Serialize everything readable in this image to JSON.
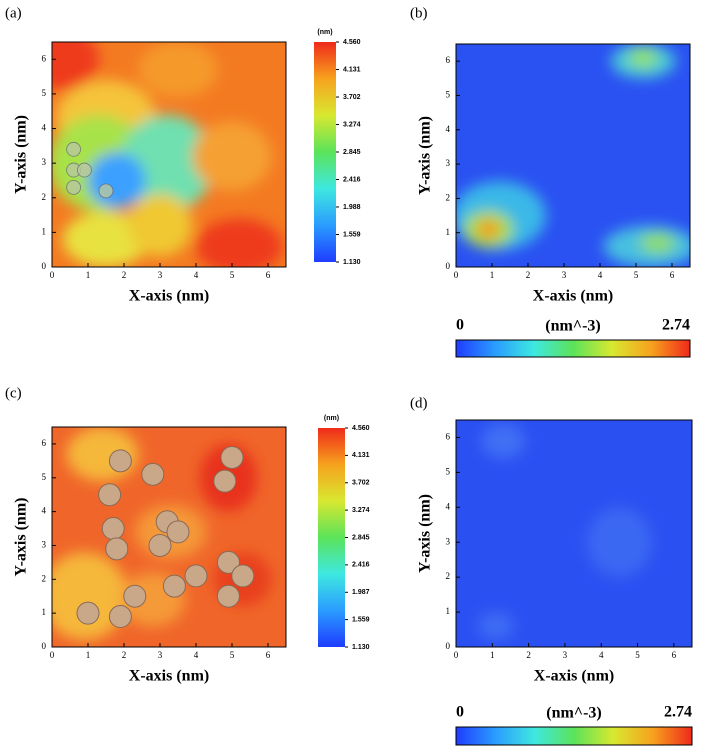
{
  "chart_data": [
    {
      "type": "heatmap",
      "panel_label": "(a)",
      "xlabel": "X-axis (nm)",
      "ylabel": "Y-axis (nm)",
      "xlim": [
        0,
        6.5
      ],
      "xticks": [
        0,
        1,
        2,
        3,
        4,
        5,
        6
      ],
      "ylim": [
        0,
        6.5
      ],
      "yticks": [
        0,
        1,
        2,
        3,
        4,
        5,
        6
      ],
      "colormap": [
        "#1f3cff",
        "#2a9cff",
        "#3ee8e0",
        "#5be35a",
        "#d8e830",
        "#f7a21e",
        "#ef2a1a"
      ],
      "colorbar": {
        "orientation": "vertical",
        "title": "(nm)",
        "lim": [
          1.13,
          4.56
        ],
        "ticks": [
          {
            "value": 1.13,
            "label": "1.130"
          },
          {
            "value": 1.559,
            "label": "1.559"
          },
          {
            "value": 1.988,
            "label": "1.988"
          },
          {
            "value": 2.416,
            "label": "2.416"
          },
          {
            "value": 2.845,
            "label": "2.845"
          },
          {
            "value": 3.274,
            "label": "3.274"
          },
          {
            "value": 3.702,
            "label": "3.702"
          },
          {
            "value": 4.131,
            "label": "4.131"
          },
          {
            "value": 4.56,
            "label": "4.560"
          }
        ]
      }
    },
    {
      "type": "heatmap",
      "panel_label": "(b)",
      "xlabel": "X-axis (nm)",
      "ylabel": "Y-axis (nm)",
      "xlim": [
        0,
        6.5
      ],
      "xticks": [
        0,
        1,
        2,
        3,
        4,
        5,
        6
      ],
      "ylim": [
        0,
        6.5
      ],
      "yticks": [
        0,
        1,
        2,
        3,
        4,
        5,
        6
      ],
      "colormap": [
        "#1f3cff",
        "#2a9cff",
        "#3ee8e0",
        "#5be35a",
        "#d8e830",
        "#f7a21e",
        "#ef2a1a"
      ],
      "colorbar": {
        "orientation": "horizontal",
        "title": "(nm^-3)",
        "lim": [
          0,
          2.74
        ],
        "ticks": [
          0,
          2.74
        ]
      }
    },
    {
      "type": "heatmap",
      "panel_label": "(c)",
      "xlabel": "X-axis (nm)",
      "ylabel": "Y-axis (nm)",
      "xlim": [
        0,
        6.5
      ],
      "xticks": [
        0,
        1,
        2,
        3,
        4,
        5,
        6
      ],
      "ylim": [
        0,
        6.5
      ],
      "yticks": [
        0,
        1,
        2,
        3,
        4,
        5,
        6
      ],
      "colormap": [
        "#1f3cff",
        "#2a9cff",
        "#3ee8e0",
        "#5be35a",
        "#d8e830",
        "#f7a21e",
        "#ef2a1a"
      ],
      "colorbar": {
        "orientation": "vertical",
        "title": "(nm)",
        "lim": [
          1.13,
          4.56
        ],
        "ticks": [
          {
            "value": 1.13,
            "label": "1.130"
          },
          {
            "value": 1.559,
            "label": "1.559"
          },
          {
            "value": 1.987,
            "label": "1.987"
          },
          {
            "value": 2.416,
            "label": "2.416"
          },
          {
            "value": 2.845,
            "label": "2.845"
          },
          {
            "value": 3.274,
            "label": "3.274"
          },
          {
            "value": 3.702,
            "label": "3.702"
          },
          {
            "value": 4.131,
            "label": "4.131"
          },
          {
            "value": 4.56,
            "label": "4.560"
          }
        ]
      }
    },
    {
      "type": "heatmap",
      "panel_label": "(d)",
      "xlabel": "X-axis (nm)",
      "ylabel": "Y-axis (nm)",
      "xlim": [
        0,
        6.5
      ],
      "xticks": [
        0,
        1,
        2,
        3,
        4,
        5,
        6
      ],
      "ylim": [
        0,
        6.5
      ],
      "yticks": [
        0,
        1,
        2,
        3,
        4,
        5,
        6
      ],
      "colormap": [
        "#1f3cff",
        "#2a9cff",
        "#3ee8e0",
        "#5be35a",
        "#d8e830",
        "#f7a21e",
        "#ef2a1a"
      ],
      "colorbar": {
        "orientation": "horizontal",
        "title": "(nm^-3)",
        "lim": [
          0,
          2.74
        ],
        "ticks": [
          0,
          2.74
        ]
      }
    }
  ]
}
